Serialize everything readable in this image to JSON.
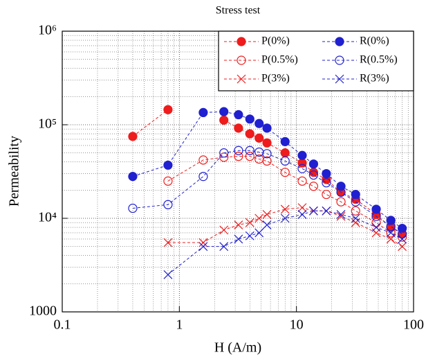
{
  "chart_data": {
    "type": "scatter",
    "title": "Stress test",
    "x_label": "H (A/m)",
    "y_label": "Permeability",
    "x_log": true,
    "y_log": true,
    "grid": true,
    "minor_grid": true,
    "legend": "upper right",
    "xlim": [
      0.1,
      100
    ],
    "ylim": [
      1000,
      1000000
    ],
    "xticks": [
      0.1,
      1,
      10,
      100
    ],
    "yticks": [
      1000,
      {
        "value": 10000,
        "label": "10⁴"
      },
      {
        "value": 100000,
        "label": "10⁵"
      },
      {
        "value": 1000000,
        "label": "10⁶"
      }
    ],
    "x": [
      0.4,
      0.8,
      1.6,
      2.4,
      3.2,
      4,
      4.8,
      5.6,
      8,
      11.2,
      14,
      18,
      24,
      32,
      48,
      64,
      80
    ],
    "series": [
      {
        "name": "P(0%)",
        "color": "#ee1c1c",
        "marker": "filled",
        "values": [
          75000,
          145000,
          null,
          112000,
          92000,
          80000,
          72000,
          64000,
          50000,
          39000,
          31000,
          26000,
          19000,
          16000,
          11000,
          8000,
          6800
        ]
      },
      {
        "name": "R(0%)",
        "color": "#2020d0",
        "marker": "filled",
        "values": [
          28000,
          37000,
          135000,
          138000,
          128000,
          115000,
          103000,
          92000,
          66000,
          47000,
          38000,
          30000,
          22000,
          18000,
          12500,
          9500,
          7800
        ]
      },
      {
        "name": "P(0.5%)",
        "color": "#ee1c1c",
        "marker": "open",
        "values": [
          null,
          25000,
          42000,
          45000,
          46000,
          46000,
          43000,
          41000,
          31000,
          25000,
          22000,
          18000,
          15000,
          12000,
          9000,
          7000,
          6300
        ]
      },
      {
        "name": "R(0.5%)",
        "color": "#2020d0",
        "marker": "open",
        "values": [
          12800,
          14000,
          28000,
          50000,
          53000,
          53000,
          51000,
          49000,
          41000,
          34000,
          29000,
          24000,
          19000,
          15000,
          10500,
          8200,
          6800
        ]
      },
      {
        "name": "P(3%)",
        "color": "#ee1c1c",
        "marker": "cross",
        "values": [
          null,
          5500,
          5500,
          7500,
          8500,
          9000,
          10000,
          11000,
          12500,
          13000,
          12000,
          12000,
          10500,
          9000,
          7000,
          6000,
          5000
        ]
      },
      {
        "name": "R(3%)",
        "color": "#2020d0",
        "marker": "cross",
        "values": [
          null,
          2500,
          5000,
          5000,
          6000,
          6500,
          7000,
          8500,
          10000,
          11000,
          12000,
          12000,
          11000,
          10000,
          8000,
          7000,
          6000
        ]
      }
    ]
  }
}
